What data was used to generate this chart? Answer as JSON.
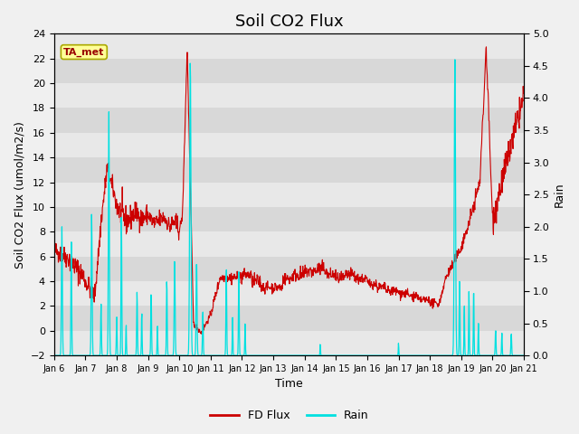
{
  "title": "Soil CO2 Flux",
  "xlabel": "Time",
  "ylabel_left": "Soil CO2 Flux (umol/m2/s)",
  "ylabel_right": "Rain",
  "ylim_left": [
    -2,
    24
  ],
  "ylim_right": [
    0.0,
    5.0
  ],
  "yticks_left": [
    -2,
    0,
    2,
    4,
    6,
    8,
    10,
    12,
    14,
    16,
    18,
    20,
    22,
    24
  ],
  "yticks_right": [
    0.0,
    0.5,
    1.0,
    1.5,
    2.0,
    2.5,
    3.0,
    3.5,
    4.0,
    4.5,
    5.0
  ],
  "xtick_labels": [
    "Jan 6",
    "Jan 7",
    "Jan 8",
    "Jan 9",
    "Jan 10",
    "Jan 11",
    "Jan 12",
    "Jan 13",
    "Jan 14",
    "Jan 15",
    "Jan 16",
    "Jan 17",
    "Jan 18",
    "Jan 19",
    "Jan 20",
    "Jan 21"
  ],
  "flux_color": "#cc0000",
  "rain_color": "#00e0e0",
  "fig_facecolor": "#f0f0f0",
  "plot_facecolor": "#e0e0e0",
  "band_light": "#e8e8e8",
  "band_dark": "#d8d8d8",
  "tag_text": "TA_met",
  "tag_facecolor": "#ffff99",
  "tag_edgecolor": "#aaa800",
  "legend_items": [
    "FD Flux",
    "Rain"
  ],
  "title_fontsize": 13,
  "axis_label_fontsize": 9,
  "tick_fontsize": 8
}
